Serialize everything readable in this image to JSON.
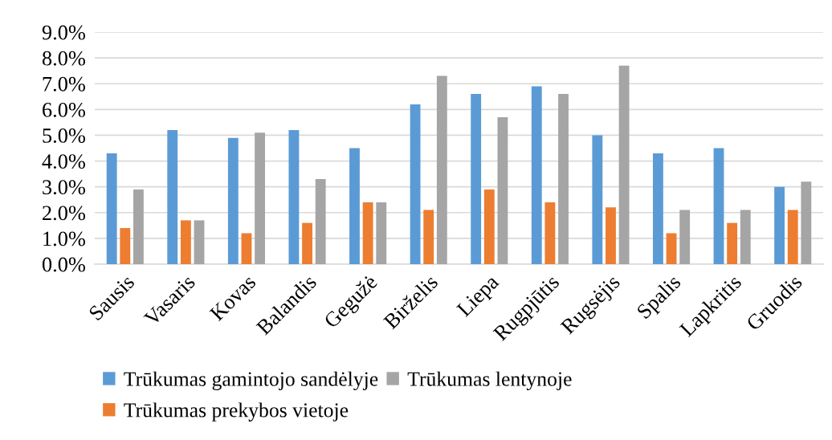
{
  "chart_data": {
    "type": "bar",
    "categories": [
      "Sausis",
      "Vasaris",
      "Kovas",
      "Balandis",
      "Gegužė",
      "Birželis",
      "Liepa",
      "Rugpjūtis",
      "Rugsėjis",
      "Spalis",
      "Lapkritis",
      "Gruodis"
    ],
    "series": [
      {
        "name": "Trūkumas gamintojo sandėlyje",
        "color": "#5b9bd5",
        "values": [
          4.3,
          5.2,
          4.9,
          5.2,
          4.5,
          6.2,
          6.6,
          6.9,
          5.0,
          4.3,
          4.5,
          3.0
        ]
      },
      {
        "name": "Trūkumas prekybos vietoje",
        "color": "#ed7d31",
        "values": [
          1.4,
          1.7,
          1.2,
          1.6,
          2.4,
          2.1,
          2.9,
          2.4,
          2.2,
          1.2,
          1.6,
          2.1
        ]
      },
      {
        "name": "Trūkumas lentynoje",
        "color": "#a5a5a5",
        "values": [
          2.9,
          1.7,
          5.1,
          3.3,
          2.4,
          7.3,
          5.7,
          6.6,
          7.7,
          2.1,
          2.1,
          3.2
        ]
      }
    ],
    "ylim": [
      0,
      9
    ],
    "yticks": [
      {
        "value": 0,
        "label": "0.0%"
      },
      {
        "value": 1,
        "label": "1.0%"
      },
      {
        "value": 2,
        "label": "2.0%"
      },
      {
        "value": 3,
        "label": "3.0%"
      },
      {
        "value": 4,
        "label": "4.0%"
      },
      {
        "value": 5,
        "label": "5.0%"
      },
      {
        "value": 6,
        "label": "6.0%"
      },
      {
        "value": 7,
        "label": "7.0%"
      },
      {
        "value": 8,
        "label": "8.0%"
      },
      {
        "value": 9,
        "label": "9.0%"
      }
    ],
    "grid": "y",
    "legend": "bottom"
  }
}
